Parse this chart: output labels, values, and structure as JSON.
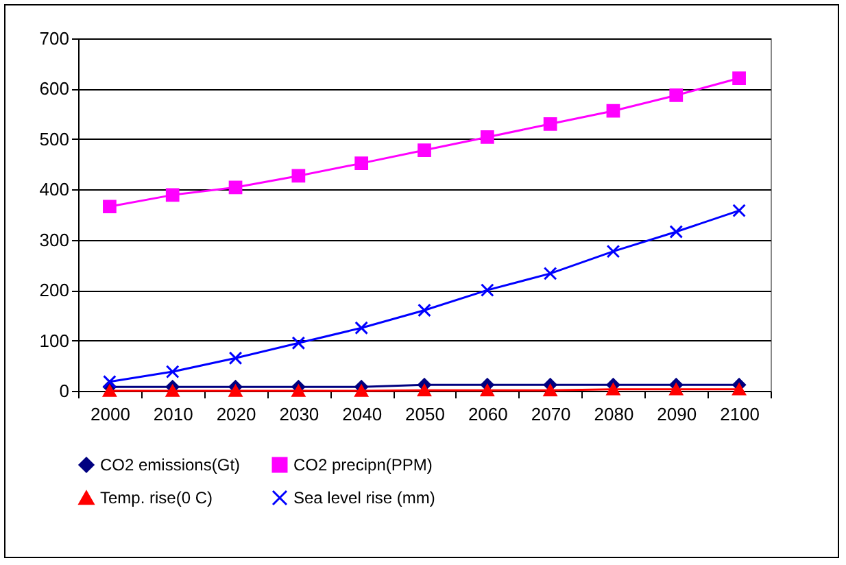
{
  "chart_data": {
    "type": "line",
    "categories": [
      "2000",
      "2010",
      "2020",
      "2030",
      "2040",
      "2050",
      "2060",
      "2070",
      "2080",
      "2090",
      "2100"
    ],
    "series": [
      {
        "name": "CO2 emissions(Gt)",
        "color": "#000080",
        "marker": "diamond",
        "values": [
          8,
          8,
          8,
          8,
          8,
          12,
          12,
          12,
          12,
          12,
          12
        ]
      },
      {
        "name": "CO2 precipn(PPM)",
        "color": "#ff00ff",
        "marker": "square",
        "values": [
          366,
          389,
          404,
          427,
          452,
          478,
          504,
          530,
          556,
          587,
          621
        ]
      },
      {
        "name": "Temp. rise(0 C)",
        "color": "#ff0000",
        "marker": "triangle",
        "values": [
          0,
          0,
          0,
          0,
          0,
          1,
          1,
          1,
          3,
          3,
          3
        ]
      },
      {
        "name": "Sea level rise (mm)",
        "color": "#0000ff",
        "marker": "cross",
        "values": [
          18,
          38,
          65,
          95,
          125,
          160,
          200,
          233,
          277,
          316,
          358
        ]
      }
    ],
    "ylim": [
      0,
      700
    ],
    "yticks": [
      0,
      100,
      200,
      300,
      400,
      500,
      600,
      700
    ],
    "grid": "y",
    "legend": "bottom",
    "line_style": "solid"
  }
}
